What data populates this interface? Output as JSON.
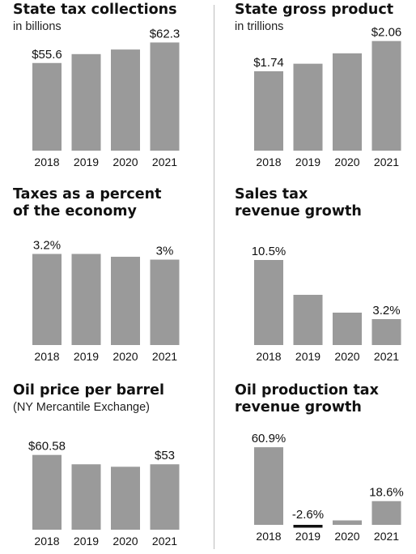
{
  "colors": {
    "bar": "#9a9a9a",
    "negative_bar": "#111111",
    "divider": "#bdbdbd",
    "text": "#111111"
  },
  "chart_data": [
    {
      "id": "tax",
      "type": "bar",
      "title": "State tax collections",
      "subtitle": "in billions",
      "categories": [
        "2018",
        "2019",
        "2020",
        "2021"
      ],
      "values": [
        55.6,
        58.5,
        60.0,
        62.3
      ],
      "data_labels": [
        "$55.6",
        "",
        "",
        "$62.3"
      ],
      "ylim": [
        27,
        64
      ]
    },
    {
      "id": "gsp",
      "type": "bar",
      "title": "State gross product",
      "subtitle": "in trillions",
      "categories": [
        "2018",
        "2019",
        "2020",
        "2021"
      ],
      "values": [
        1.74,
        1.82,
        1.93,
        2.06
      ],
      "data_labels": [
        "$1.74",
        "",
        "",
        "$2.06"
      ],
      "ylim": [
        0.9,
        2.1
      ]
    },
    {
      "id": "pct",
      "type": "bar",
      "title": "Taxes as a percent of the economy",
      "title_lines": [
        "Taxes as a percent",
        "of the economy"
      ],
      "subtitle": "",
      "categories": [
        "2018",
        "2019",
        "2020",
        "2021"
      ],
      "values": [
        3.2,
        3.2,
        3.1,
        3.0
      ],
      "data_labels": [
        "3.2%",
        "",
        "",
        "3%"
      ],
      "ylim": [
        0,
        3.3
      ]
    },
    {
      "id": "sales",
      "type": "bar",
      "title": "Sales tax revenue growth",
      "title_lines": [
        "Sales tax",
        "revenue growth"
      ],
      "subtitle": "",
      "categories": [
        "2018",
        "2019",
        "2020",
        "2021"
      ],
      "values": [
        10.5,
        6.2,
        4.0,
        3.2
      ],
      "data_labels": [
        "10.5%",
        "",
        "",
        "3.2%"
      ],
      "ylim": [
        0,
        12.2
      ]
    },
    {
      "id": "oil",
      "type": "bar",
      "title": "Oil price per barrel",
      "subtitle": "(NY Mercantile Exchange)",
      "categories": [
        "2018",
        "2019",
        "2020",
        "2021"
      ],
      "values": [
        60.58,
        53.0,
        51.0,
        53.0
      ],
      "data_labels": [
        "$60.58",
        "",
        "",
        "$53"
      ],
      "ylim": [
        0,
        63
      ]
    },
    {
      "id": "oilprod",
      "type": "bar",
      "title": "Oil production tax revenue growth",
      "title_lines": [
        "Oil production tax",
        "revenue growth"
      ],
      "subtitle": "",
      "categories": [
        "2018",
        "2019",
        "2020",
        "2021"
      ],
      "values": [
        60.9,
        -2.6,
        3.5,
        18.6
      ],
      "data_labels": [
        "60.9%",
        "-2.6%",
        "",
        "18.6%"
      ],
      "ylim": [
        0,
        61
      ]
    }
  ]
}
